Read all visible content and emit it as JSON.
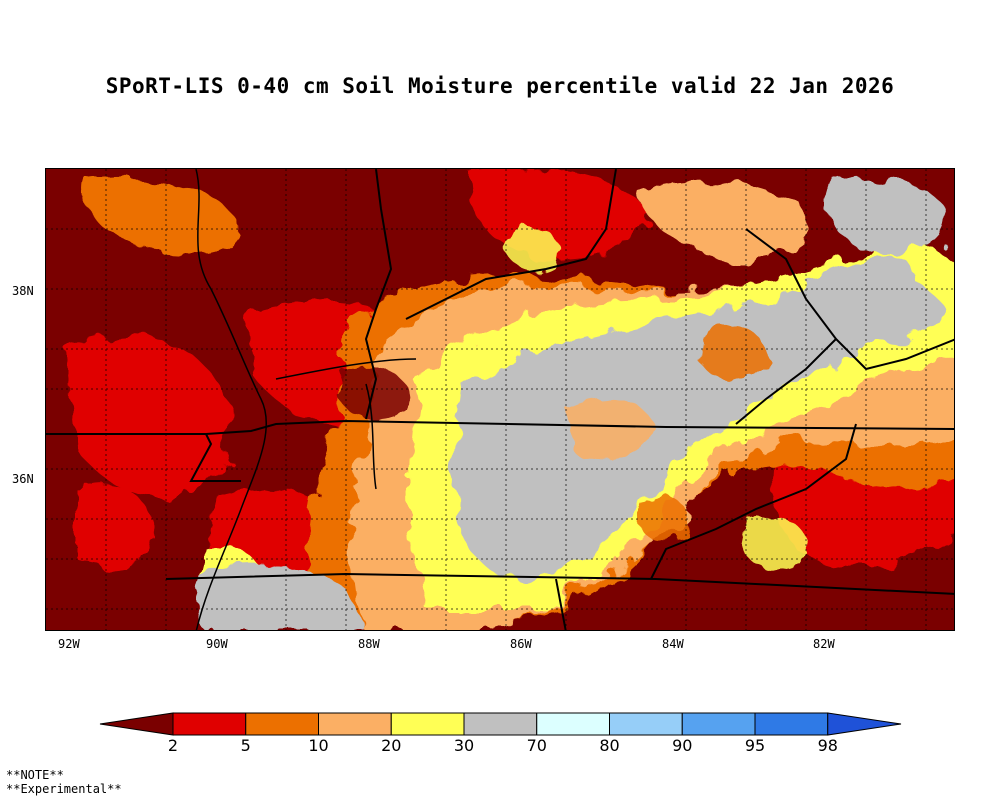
{
  "title": "SPoRT-LIS 0-40 cm Soil Moisture percentile valid 22 Jan 2026",
  "map": {
    "lon_labels": [
      "92W",
      "90W",
      "88W",
      "86W",
      "84W",
      "82W"
    ],
    "lat_labels": [
      "38N",
      "36N"
    ]
  },
  "colorbar": {
    "labels": [
      "2",
      "5",
      "10",
      "20",
      "30",
      "70",
      "80",
      "90",
      "95",
      "98"
    ],
    "colors": [
      "#7a0000",
      "#e00000",
      "#ec7000",
      "#fbaf64",
      "#ffff55",
      "#c0c0c0",
      "#dcffff",
      "#96cef8",
      "#56a2f0",
      "#2f7ae6",
      "#1f52d8"
    ]
  },
  "notes": [
    "**NOTE**",
    "**Experimental**"
  ]
}
